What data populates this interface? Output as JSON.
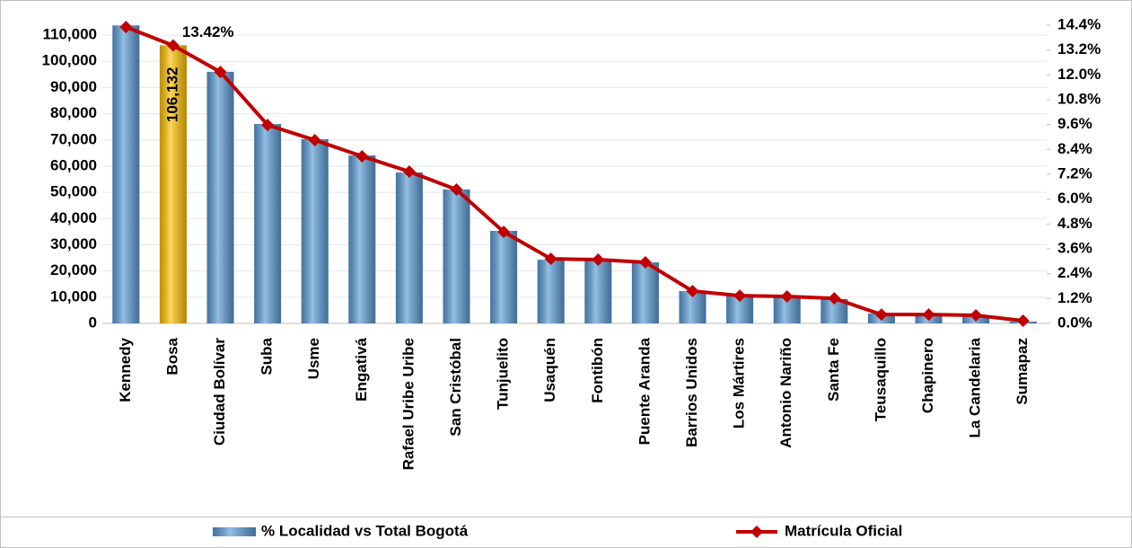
{
  "chart_data": {
    "type": "bar-line",
    "categories": [
      "Kennedy",
      "Bosa",
      "Ciudad Bolívar",
      "Suba",
      "Usme",
      "Engativá",
      "Rafael Uribe Uribe",
      "San Cristóbal",
      "Tunjuelito",
      "Usaquén",
      "Fontibón",
      "Puente Aranda",
      "Barrios Unidos",
      "Los Mártires",
      "Antonio Nariño",
      "Santa Fe",
      "Teusaquillo",
      "Chapinero",
      "La Candelaria",
      "Sumapaz"
    ],
    "series": [
      {
        "name": "% Localidad vs Total Bogotá",
        "type": "bar",
        "color": "#5b9bd5",
        "colors": [
          "#5b9bd5",
          "#ffc000",
          "#5b9bd5",
          "#5b9bd5",
          "#5b9bd5",
          "#5b9bd5",
          "#5b9bd5",
          "#5b9bd5",
          "#5b9bd5",
          "#5b9bd5",
          "#5b9bd5",
          "#5b9bd5",
          "#5b9bd5",
          "#5b9bd5",
          "#5b9bd5",
          "#5b9bd5",
          "#5b9bd5",
          "#5b9bd5",
          "#5b9bd5",
          "#5b9bd5"
        ],
        "values": [
          113700,
          106132,
          96000,
          76100,
          70300,
          64100,
          57600,
          51100,
          35300,
          24300,
          24000,
          23300,
          12300,
          10600,
          9900,
          9300,
          3800,
          3400,
          3100,
          700
        ],
        "value_labels": [
          null,
          "106,132",
          null,
          null,
          null,
          null,
          null,
          null,
          null,
          null,
          null,
          null,
          null,
          null,
          null,
          null,
          null,
          null,
          null,
          null
        ]
      },
      {
        "name": "Matrícula Oficial",
        "type": "line",
        "axis": "y2",
        "color": "#c00000",
        "values": [
          14.31,
          13.42,
          12.14,
          9.58,
          8.85,
          8.07,
          7.33,
          6.46,
          4.42,
          3.12,
          3.08,
          2.95,
          1.56,
          1.34,
          1.3,
          1.21,
          0.43,
          0.43,
          0.39,
          0.13
        ],
        "value_labels": [
          null,
          "13.42%",
          null,
          null,
          null,
          null,
          null,
          null,
          null,
          null,
          null,
          null,
          null,
          null,
          null,
          null,
          null,
          null,
          null,
          null
        ]
      }
    ],
    "ylim": [
      0,
      113800
    ],
    "yticks": [
      0,
      {
        "value": 10000,
        "label": "10,000"
      },
      {
        "value": 20000,
        "label": "20,000"
      },
      {
        "value": 30000,
        "label": "30,000"
      },
      {
        "value": 40000,
        "label": "40,000"
      },
      {
        "value": 50000,
        "label": "50,000"
      },
      {
        "value": 60000,
        "label": "60,000"
      },
      {
        "value": 70000,
        "label": "70,000"
      },
      {
        "value": 80000,
        "label": "80,000"
      },
      {
        "value": 90000,
        "label": "90,000"
      },
      {
        "value": 100000,
        "label": "100,000"
      },
      {
        "value": 110000,
        "label": "110,000"
      }
    ],
    "y2lim": [
      0,
      14.4
    ],
    "y2ticks": [
      {
        "value": 0,
        "label": "0.0%"
      },
      {
        "value": 1.2,
        "label": "1.2%"
      },
      {
        "value": 2.4,
        "label": "2.4%"
      },
      {
        "value": 3.6,
        "label": "3.6%"
      },
      {
        "value": 4.8,
        "label": "4.8%"
      },
      {
        "value": 6.0,
        "label": "6.0%"
      },
      {
        "value": 7.2,
        "label": "7.2%"
      },
      {
        "value": 8.4,
        "label": "8.4%"
      },
      {
        "value": 9.6,
        "label": "9.6%"
      },
      {
        "value": 10.8,
        "label": "10.8%"
      },
      {
        "value": 12.0,
        "label": "12.0%"
      },
      {
        "value": 13.2,
        "label": "13.2%"
      },
      {
        "value": 14.4,
        "label": "14.4%"
      }
    ],
    "grid": true,
    "legend": "bottom"
  }
}
